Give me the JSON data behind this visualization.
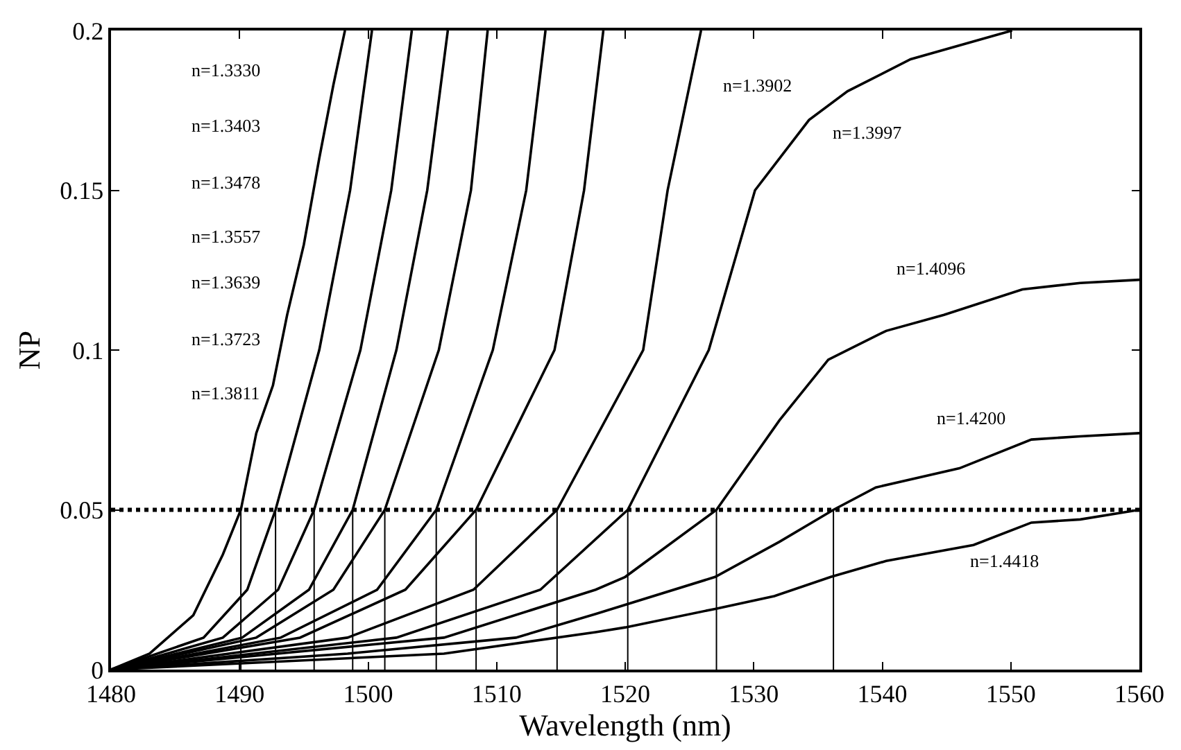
{
  "chart_data": {
    "type": "line",
    "xlabel": "Wavelength (nm)",
    "ylabel": "NP",
    "xlim": [
      1480,
      1560
    ],
    "ylim": [
      0,
      0.2
    ],
    "xticks": [
      1480,
      1490,
      1500,
      1510,
      1520,
      1530,
      1540,
      1550,
      1560
    ],
    "yticks": [
      0,
      0.05,
      {
        "value": 0.1,
        "label": "0.1"
      },
      0.15,
      {
        "value": 0.2,
        "label": "0.2"
      }
    ],
    "marker": "none",
    "line_style": "solid",
    "series": [
      {
        "color": "#000000",
        "x": [
          1480,
          1483,
          1486.4,
          1488.7,
          1490.1,
          1491.3,
          1492.6,
          1493.7,
          1495,
          1496.2,
          1497.3,
          1498.2
        ],
        "values": [
          0,
          0.005,
          0.017,
          0.036,
          0.05,
          0.074,
          0.089,
          0.111,
          0.133,
          0.16,
          0.183,
          0.2
        ]
      },
      {
        "color": "#000000",
        "x": [
          1480,
          1487.2,
          1490.6,
          1492.8,
          1496.2,
          1498.6,
          1500.3
        ],
        "values": [
          0,
          0.01,
          0.025,
          0.05,
          0.1,
          0.15,
          0.2
        ]
      },
      {
        "color": "#000000",
        "x": [
          1480,
          1488.7,
          1493,
          1495.8,
          1499.4,
          1501.8,
          1503.4
        ],
        "values": [
          0,
          0.01,
          0.025,
          0.05,
          0.1,
          0.15,
          0.2
        ]
      },
      {
        "color": "#000000",
        "x": [
          1480,
          1490.2,
          1495.4,
          1498.8,
          1502.2,
          1504.6,
          1506.2
        ],
        "values": [
          0,
          0.01,
          0.025,
          0.05,
          0.1,
          0.15,
          0.2
        ]
      },
      {
        "color": "#000000",
        "x": [
          1480,
          1491.3,
          1497.3,
          1501.3,
          1505.5,
          1508,
          1509.3
        ],
        "values": [
          0,
          0.01,
          0.025,
          0.05,
          0.1,
          0.15,
          0.2
        ]
      },
      {
        "color": "#000000",
        "x": [
          1480,
          1493.2,
          1500.7,
          1505.3,
          1509.7,
          1512.3,
          1513.8
        ],
        "values": [
          0,
          0.01,
          0.025,
          0.05,
          0.1,
          0.15,
          0.2
        ]
      },
      {
        "color": "#000000",
        "x": [
          1480,
          1494.7,
          1502.9,
          1508.4,
          1514.5,
          1516.8,
          1518.3
        ],
        "values": [
          0,
          0.01,
          0.025,
          0.05,
          0.1,
          0.15,
          0.2
        ]
      },
      {
        "color": "#000000",
        "x": [
          1480,
          1498.4,
          1508.2,
          1514.7,
          1521.4,
          1523.3,
          1525.9
        ],
        "values": [
          0,
          0.01,
          0.025,
          0.05,
          0.1,
          0.15,
          0.2
        ]
      },
      {
        "color": "#000000",
        "x": [
          1480,
          1502.2,
          1513.4,
          1520.2,
          1526.5,
          1530.1,
          1534.3,
          1537.3,
          1542.2,
          1550.1
        ],
        "values": [
          0,
          0.01,
          0.025,
          0.05,
          0.1,
          0.15,
          0.172,
          0.181,
          0.191,
          0.2
        ]
      },
      {
        "color": "#000000",
        "x": [
          1480,
          1505.9,
          1517.7,
          1520,
          1527.1,
          1532,
          1535.8,
          1540.3,
          1544.8,
          1550.9,
          1555.4,
          1560
        ],
        "values": [
          0,
          0.01,
          0.025,
          0.029,
          0.05,
          0.078,
          0.097,
          0.106,
          0.111,
          0.119,
          0.121,
          0.122
        ]
      },
      {
        "color": "#000000",
        "x": [
          1480,
          1498.4,
          1511.5,
          1517.7,
          1527,
          1532,
          1536.2,
          1539.5,
          1546,
          1551.6,
          1555.4,
          1560
        ],
        "values": [
          0,
          0.005,
          0.01,
          0.0174,
          0.029,
          0.04,
          0.05,
          0.057,
          0.063,
          0.072,
          0.073,
          0.074
        ]
      },
      {
        "color": "#000000",
        "x": [
          1480,
          1505.9,
          1517.7,
          1520,
          1527,
          1531.6,
          1536,
          1540.3,
          1547.1,
          1551.6,
          1555.4,
          1560
        ],
        "values": [
          0,
          0.005,
          0.0117,
          0.0132,
          0.019,
          0.023,
          0.029,
          0.034,
          0.039,
          0.046,
          0.047,
          0.05
        ]
      },
      {
        "type": "line",
        "color": "#000000",
        "x": [
          1490.1,
          1490.1,
          null,
          1492.8,
          1492.8,
          null,
          1495.8,
          1495.8,
          null,
          1498.8,
          1498.8,
          null,
          1501.3,
          1501.3,
          null,
          1505.3,
          1505.3,
          null,
          1508.4,
          1508.4,
          null,
          1514.7,
          1514.7,
          null,
          1520.2,
          1520.2,
          null,
          1527.1,
          1527.1,
          null,
          1536.2,
          1536.2
        ],
        "values": [
          0,
          0.05,
          null,
          0,
          0.05,
          null,
          0,
          0.05,
          null,
          0,
          0.05,
          null,
          0,
          0.05,
          null,
          0,
          0.05,
          null,
          0,
          0.05,
          null,
          0,
          0.05,
          null,
          0,
          0.05,
          null,
          0,
          0.05,
          null,
          0,
          0.05
        ]
      }
    ],
    "ref_lines": [
      {
        "axis": "y",
        "value": 0.05,
        "color": "#000000",
        "line_style": "dotted"
      }
    ],
    "annotations": [
      "n=1.3330",
      "n=1.3403",
      "n=1.3478",
      "n=1.3557",
      "n=1.3639",
      "n=1.3723",
      "n=1.3811",
      "n=1.3902",
      "n=1.3997",
      "n=1.4096",
      "n=1.4200",
      "n=1.4418"
    ]
  }
}
